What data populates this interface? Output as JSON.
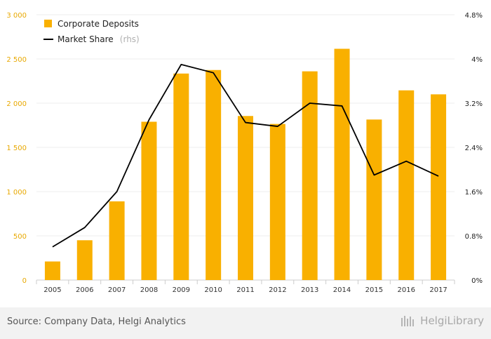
{
  "chart_data": {
    "type": "bar",
    "categories": [
      "2005",
      "2006",
      "2007",
      "2008",
      "2009",
      "2010",
      "2011",
      "2012",
      "2013",
      "2014",
      "2015",
      "2016",
      "2017"
    ],
    "series": [
      {
        "name": "Corporate Deposits",
        "type": "bar",
        "axis": "left",
        "color": "#f9b000",
        "values": [
          210,
          450,
          890,
          1790,
          2335,
          2375,
          1855,
          1765,
          2360,
          2615,
          1815,
          2145,
          2100
        ]
      },
      {
        "name": "Market Share",
        "name_suffix": "(rhs)",
        "type": "line",
        "axis": "right",
        "color": "#000000",
        "values": [
          0.6,
          0.95,
          1.6,
          2.9,
          3.9,
          3.75,
          2.85,
          2.78,
          3.2,
          3.15,
          1.9,
          2.15,
          1.88
        ]
      }
    ],
    "y_left": {
      "min": 0,
      "max": 3000,
      "ticks": [
        "0",
        "500",
        "1 000",
        "1 500",
        "2 000",
        "2 500",
        "3 000"
      ]
    },
    "y_right": {
      "min": 0,
      "max": 4.8,
      "ticks": [
        "0%",
        "0.8%",
        "1.6%",
        "2.4%",
        "3.2%",
        "4%",
        "4.8%"
      ]
    },
    "grid": true,
    "legend_position": "top-left"
  },
  "footer": {
    "source": "Source: Company Data, Helgi Analytics",
    "brand": "HelgiLibrary"
  }
}
